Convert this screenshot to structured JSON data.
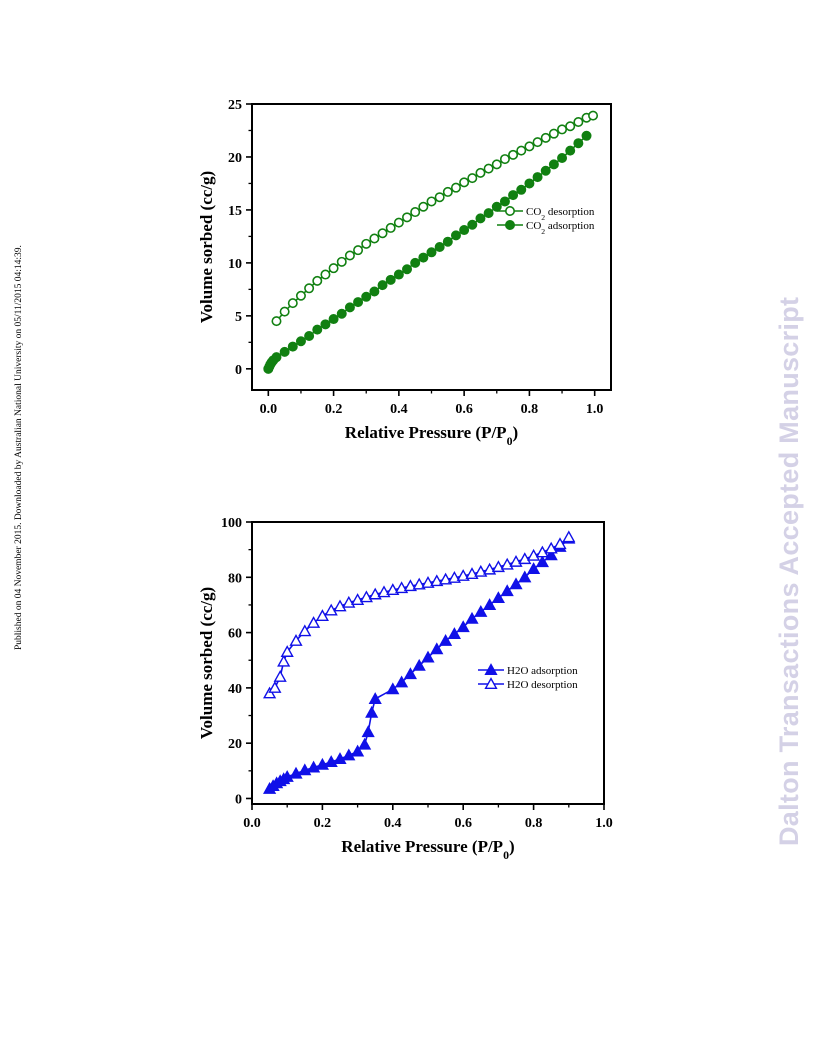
{
  "side_note": "Published on 04 November 2015. Downloaded by Australian National University on 05/11/2015 04:14:39.",
  "watermark": "Dalton Transactions Accepted Manuscript",
  "colors": {
    "co2": "#118011",
    "h2o": "#1010e8"
  },
  "chart_data": [
    {
      "type": "scatter",
      "title": "",
      "xlabel": "Relative Pressure (P/P0)",
      "ylabel": "Volume sorbed (cc/g)",
      "xlim": [
        -0.05,
        1.05
      ],
      "ylim": [
        -2,
        25
      ],
      "xticks": [
        "0.0",
        "0.2",
        "0.4",
        "0.6",
        "0.8",
        "1.0"
      ],
      "yticks": [
        "0",
        "5",
        "10",
        "15",
        "20",
        "25"
      ],
      "legend_position": "center-right",
      "series": [
        {
          "name": "CO2 desorption",
          "marker": "circle-open",
          "x": [
            0.025,
            0.05,
            0.075,
            0.1,
            0.125,
            0.15,
            0.175,
            0.2,
            0.225,
            0.25,
            0.275,
            0.3,
            0.325,
            0.35,
            0.375,
            0.4,
            0.425,
            0.45,
            0.475,
            0.5,
            0.525,
            0.55,
            0.575,
            0.6,
            0.625,
            0.65,
            0.675,
            0.7,
            0.725,
            0.75,
            0.775,
            0.8,
            0.825,
            0.85,
            0.875,
            0.9,
            0.925,
            0.95,
            0.975,
            0.995
          ],
          "y": [
            4.5,
            5.4,
            6.2,
            6.9,
            7.6,
            8.3,
            8.9,
            9.5,
            10.1,
            10.7,
            11.2,
            11.8,
            12.3,
            12.8,
            13.3,
            13.8,
            14.3,
            14.8,
            15.3,
            15.8,
            16.2,
            16.7,
            17.1,
            17.6,
            18.0,
            18.5,
            18.9,
            19.3,
            19.8,
            20.2,
            20.6,
            21.0,
            21.4,
            21.8,
            22.2,
            22.6,
            22.9,
            23.3,
            23.7,
            23.9
          ]
        },
        {
          "name": "CO2 adsorption",
          "marker": "circle-filled",
          "x": [
            0.0,
            0.003,
            0.006,
            0.01,
            0.015,
            0.025,
            0.05,
            0.075,
            0.1,
            0.125,
            0.15,
            0.175,
            0.2,
            0.225,
            0.25,
            0.275,
            0.3,
            0.325,
            0.35,
            0.375,
            0.4,
            0.425,
            0.45,
            0.475,
            0.5,
            0.525,
            0.55,
            0.575,
            0.6,
            0.625,
            0.65,
            0.675,
            0.7,
            0.725,
            0.75,
            0.775,
            0.8,
            0.825,
            0.85,
            0.875,
            0.9,
            0.925,
            0.95,
            0.975
          ],
          "y": [
            0.0,
            0.2,
            0.4,
            0.6,
            0.8,
            1.1,
            1.6,
            2.1,
            2.6,
            3.1,
            3.7,
            4.2,
            4.7,
            5.2,
            5.8,
            6.3,
            6.8,
            7.3,
            7.9,
            8.4,
            8.9,
            9.4,
            10.0,
            10.5,
            11.0,
            11.5,
            12.0,
            12.6,
            13.1,
            13.6,
            14.2,
            14.7,
            15.3,
            15.8,
            16.4,
            16.9,
            17.5,
            18.1,
            18.7,
            19.3,
            19.9,
            20.6,
            21.3,
            22.0
          ]
        }
      ]
    },
    {
      "type": "scatter",
      "title": "",
      "xlabel": "Relative Pressure (P/P0)",
      "ylabel": "Volume sorbed (cc/g)",
      "xlim": [
        0.0,
        1.0
      ],
      "ylim": [
        -2,
        100
      ],
      "xticks": [
        "0.0",
        "0.2",
        "0.4",
        "0.6",
        "0.8",
        "1.0"
      ],
      "yticks": [
        "0",
        "20",
        "40",
        "60",
        "80",
        "100"
      ],
      "legend_position": "center-right",
      "series": [
        {
          "name": "H2O adsorption",
          "marker": "triangle-filled",
          "x": [
            0.05,
            0.06,
            0.07,
            0.08,
            0.09,
            0.1,
            0.125,
            0.15,
            0.175,
            0.2,
            0.225,
            0.25,
            0.275,
            0.3,
            0.32,
            0.33,
            0.34,
            0.35,
            0.4,
            0.425,
            0.45,
            0.475,
            0.5,
            0.525,
            0.55,
            0.575,
            0.6,
            0.625,
            0.65,
            0.675,
            0.7,
            0.725,
            0.75,
            0.775,
            0.8,
            0.825,
            0.85,
            0.875,
            0.9
          ],
          "y": [
            3.5,
            4.5,
            5.5,
            6.3,
            7.0,
            7.8,
            9.0,
            10.2,
            11.2,
            12.2,
            13.2,
            14.3,
            15.6,
            17.0,
            19.5,
            24.0,
            31.0,
            36.0,
            39.5,
            42.0,
            45.0,
            48.0,
            51.0,
            54.0,
            57.0,
            59.5,
            62.0,
            65.0,
            67.5,
            70.0,
            72.5,
            75.0,
            77.5,
            80.0,
            83.0,
            85.5,
            88.0,
            91.0,
            94.0
          ]
        },
        {
          "name": "H2O desorption",
          "marker": "triangle-open",
          "x": [
            0.05,
            0.065,
            0.08,
            0.09,
            0.1,
            0.125,
            0.15,
            0.175,
            0.2,
            0.225,
            0.25,
            0.275,
            0.3,
            0.325,
            0.35,
            0.375,
            0.4,
            0.425,
            0.45,
            0.475,
            0.5,
            0.525,
            0.55,
            0.575,
            0.6,
            0.625,
            0.65,
            0.675,
            0.7,
            0.725,
            0.75,
            0.775,
            0.8,
            0.825,
            0.85,
            0.875,
            0.9
          ],
          "y": [
            38.0,
            40.0,
            44.0,
            49.5,
            53.0,
            57.0,
            60.5,
            63.5,
            66.0,
            68.0,
            69.5,
            70.8,
            71.8,
            72.8,
            73.8,
            74.6,
            75.4,
            76.1,
            76.8,
            77.4,
            78.0,
            78.6,
            79.2,
            79.8,
            80.5,
            81.2,
            82.0,
            82.8,
            83.7,
            84.6,
            85.6,
            86.6,
            87.8,
            89.0,
            90.4,
            92.0,
            94.5
          ]
        }
      ]
    }
  ]
}
